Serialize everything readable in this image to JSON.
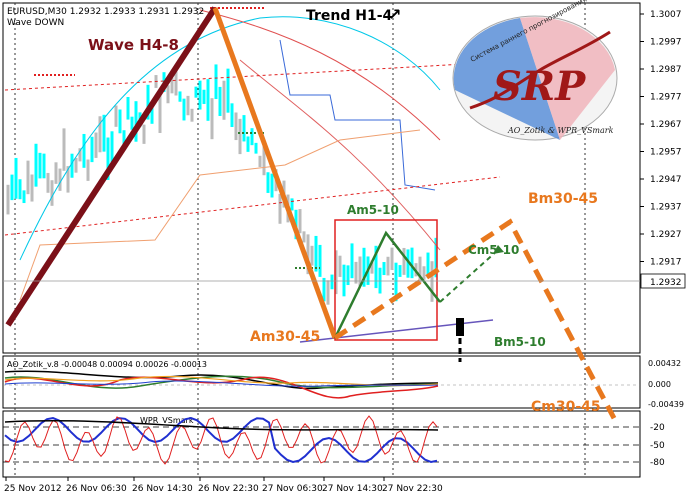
{
  "chart_data": {
    "type": "candlestick",
    "symbol_line": "EURUSD,M30  1.2932 1.2933 1.2931 1.2932",
    "subtitle": "Wave DOWN",
    "current_price": "1.2932",
    "y_ticks": [
      "1.3007",
      "1.2997",
      "1.2987",
      "1.2977",
      "1.2967",
      "1.2957",
      "1.2947",
      "1.2937",
      "1.2927",
      "1.2917"
    ],
    "ylim": [
      1.291,
      1.301
    ],
    "x_ticks": [
      "25 Nov 2012",
      "26 Nov 06:30",
      "26 Nov 14:30",
      "26 Nov 22:30",
      "27 Nov 06:30",
      "27 Nov 14:30",
      "27 Nov 22:30"
    ],
    "annotations": {
      "wave_h48": "Wave H4-8",
      "trend_h14": "Trend H1-4",
      "am5_10": "Am5-10",
      "cm5_10": "Cm5-10",
      "bm5_10": "Bm5-10",
      "am30_45": "Am30-45",
      "bm30_45": "Bm30-45",
      "cm30_45": "Cm30-45",
      "trend_arrow": "↗"
    },
    "wave_points": {
      "h48_start": 1.2913,
      "h48_peak": 1.3008,
      "am30_45": 1.2918,
      "bm30_45": 1.2947,
      "am5_10_top": 1.2946
    },
    "indicator1": {
      "label": "AO_Zotik_v.8 -0.00048 0.00094 0.00026 -0.00013",
      "ticks": [
        "0.00432",
        "0.000",
        "-0.00439"
      ]
    },
    "indicator2": {
      "label": "WPR_VSmark",
      "ticks": [
        "-20",
        "-50",
        "-80"
      ]
    },
    "logo": {
      "text": "SRP",
      "arc_text": "Система раннего прогнозирования",
      "footer": "AO_Zotik & WPR_VSmark"
    },
    "colors": {
      "wave_h48": "#7b1018",
      "wave_orange": "#e8781e",
      "green": "#2e7d2e",
      "bars": "#00ffff",
      "bars_gray": "#bbbbbb",
      "red_dotted": "#e02020",
      "purple": "#6655bb",
      "box": "#e02020"
    }
  }
}
